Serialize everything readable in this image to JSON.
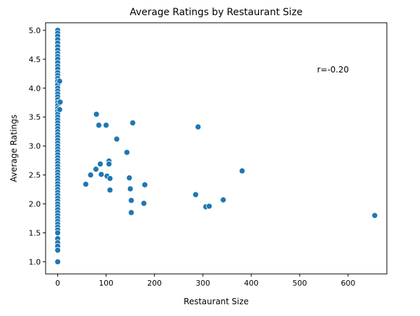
{
  "chart_data": {
    "type": "scatter",
    "title": "Average Ratings by Restaurant Size",
    "xlabel": "Restaurant Size",
    "ylabel": "Average Ratings",
    "xlim": [
      -25,
      680
    ],
    "ylim": [
      0.79,
      5.13
    ],
    "xticks": [
      0,
      100,
      200,
      300,
      400,
      500,
      600
    ],
    "yticks": [
      1.0,
      1.5,
      2.0,
      2.5,
      3.0,
      3.5,
      4.0,
      4.5,
      5.0
    ],
    "grid": false,
    "annotation": "r=-0.20",
    "color": "#1f77b4",
    "points": [
      {
        "x": 0,
        "y": 5.0
      },
      {
        "x": 0,
        "y": 4.95
      },
      {
        "x": 0,
        "y": 4.9
      },
      {
        "x": 0,
        "y": 4.84
      },
      {
        "x": 0,
        "y": 4.78
      },
      {
        "x": 0,
        "y": 4.72
      },
      {
        "x": 0,
        "y": 4.66
      },
      {
        "x": 0,
        "y": 4.6
      },
      {
        "x": 0,
        "y": 4.55
      },
      {
        "x": 0,
        "y": 4.5
      },
      {
        "x": 0,
        "y": 4.44
      },
      {
        "x": 0,
        "y": 4.38
      },
      {
        "x": 0,
        "y": 4.33
      },
      {
        "x": 0,
        "y": 4.27
      },
      {
        "x": 0,
        "y": 4.22
      },
      {
        "x": 0,
        "y": 4.17
      },
      {
        "x": 0,
        "y": 4.12
      },
      {
        "x": 0,
        "y": 4.06
      },
      {
        "x": 0,
        "y": 4.0
      },
      {
        "x": 0,
        "y": 3.95
      },
      {
        "x": 0,
        "y": 3.9
      },
      {
        "x": 0,
        "y": 3.85
      },
      {
        "x": 0,
        "y": 3.8
      },
      {
        "x": 0,
        "y": 3.75
      },
      {
        "x": 0,
        "y": 3.7
      },
      {
        "x": 0,
        "y": 3.65
      },
      {
        "x": 0,
        "y": 3.6
      },
      {
        "x": 0,
        "y": 3.55
      },
      {
        "x": 0,
        "y": 3.5
      },
      {
        "x": 0,
        "y": 3.45
      },
      {
        "x": 0,
        "y": 3.4
      },
      {
        "x": 0,
        "y": 3.35
      },
      {
        "x": 0,
        "y": 3.3
      },
      {
        "x": 0,
        "y": 3.25
      },
      {
        "x": 0,
        "y": 3.2
      },
      {
        "x": 0,
        "y": 3.15
      },
      {
        "x": 0,
        "y": 3.1
      },
      {
        "x": 0,
        "y": 3.05
      },
      {
        "x": 0,
        "y": 3.0
      },
      {
        "x": 0,
        "y": 2.95
      },
      {
        "x": 0,
        "y": 2.9
      },
      {
        "x": 0,
        "y": 2.85
      },
      {
        "x": 0,
        "y": 2.8
      },
      {
        "x": 0,
        "y": 2.75
      },
      {
        "x": 0,
        "y": 2.7
      },
      {
        "x": 0,
        "y": 2.65
      },
      {
        "x": 0,
        "y": 2.6
      },
      {
        "x": 0,
        "y": 2.55
      },
      {
        "x": 0,
        "y": 2.5
      },
      {
        "x": 0,
        "y": 2.45
      },
      {
        "x": 0,
        "y": 2.4
      },
      {
        "x": 0,
        "y": 2.35
      },
      {
        "x": 0,
        "y": 2.3
      },
      {
        "x": 0,
        "y": 2.25
      },
      {
        "x": 0,
        "y": 2.2
      },
      {
        "x": 0,
        "y": 2.15
      },
      {
        "x": 0,
        "y": 2.1
      },
      {
        "x": 0,
        "y": 2.05
      },
      {
        "x": 0,
        "y": 2.0
      },
      {
        "x": 0,
        "y": 1.95
      },
      {
        "x": 0,
        "y": 1.9
      },
      {
        "x": 0,
        "y": 1.85
      },
      {
        "x": 0,
        "y": 1.8
      },
      {
        "x": 0,
        "y": 1.75
      },
      {
        "x": 0,
        "y": 1.7
      },
      {
        "x": 0,
        "y": 1.65
      },
      {
        "x": 0,
        "y": 1.6
      },
      {
        "x": 0,
        "y": 1.55
      },
      {
        "x": 0,
        "y": 1.5
      },
      {
        "x": 0,
        "y": 1.4
      },
      {
        "x": 0,
        "y": 1.33
      },
      {
        "x": 0,
        "y": 1.27
      },
      {
        "x": 0,
        "y": 1.2
      },
      {
        "x": 0,
        "y": 1.0
      },
      {
        "x": 4,
        "y": 4.12
      },
      {
        "x": 5,
        "y": 3.76
      },
      {
        "x": 4,
        "y": 3.63
      },
      {
        "x": 80,
        "y": 3.55
      },
      {
        "x": 85,
        "y": 3.36
      },
      {
        "x": 100,
        "y": 3.36
      },
      {
        "x": 155,
        "y": 3.4
      },
      {
        "x": 290,
        "y": 3.33
      },
      {
        "x": 122,
        "y": 3.12
      },
      {
        "x": 143,
        "y": 2.89
      },
      {
        "x": 106,
        "y": 2.74
      },
      {
        "x": 106,
        "y": 2.69
      },
      {
        "x": 88,
        "y": 2.69
      },
      {
        "x": 79,
        "y": 2.6
      },
      {
        "x": 381,
        "y": 2.57
      },
      {
        "x": 68,
        "y": 2.5
      },
      {
        "x": 90,
        "y": 2.51
      },
      {
        "x": 102,
        "y": 2.48
      },
      {
        "x": 108,
        "y": 2.44
      },
      {
        "x": 148,
        "y": 2.45
      },
      {
        "x": 58,
        "y": 2.34
      },
      {
        "x": 180,
        "y": 2.33
      },
      {
        "x": 150,
        "y": 2.26
      },
      {
        "x": 108,
        "y": 2.24
      },
      {
        "x": 285,
        "y": 2.16
      },
      {
        "x": 342,
        "y": 2.07
      },
      {
        "x": 152,
        "y": 2.06
      },
      {
        "x": 178,
        "y": 2.01
      },
      {
        "x": 306,
        "y": 1.95
      },
      {
        "x": 313,
        "y": 1.96
      },
      {
        "x": 152,
        "y": 1.85
      },
      {
        "x": 655,
        "y": 1.8
      }
    ]
  }
}
